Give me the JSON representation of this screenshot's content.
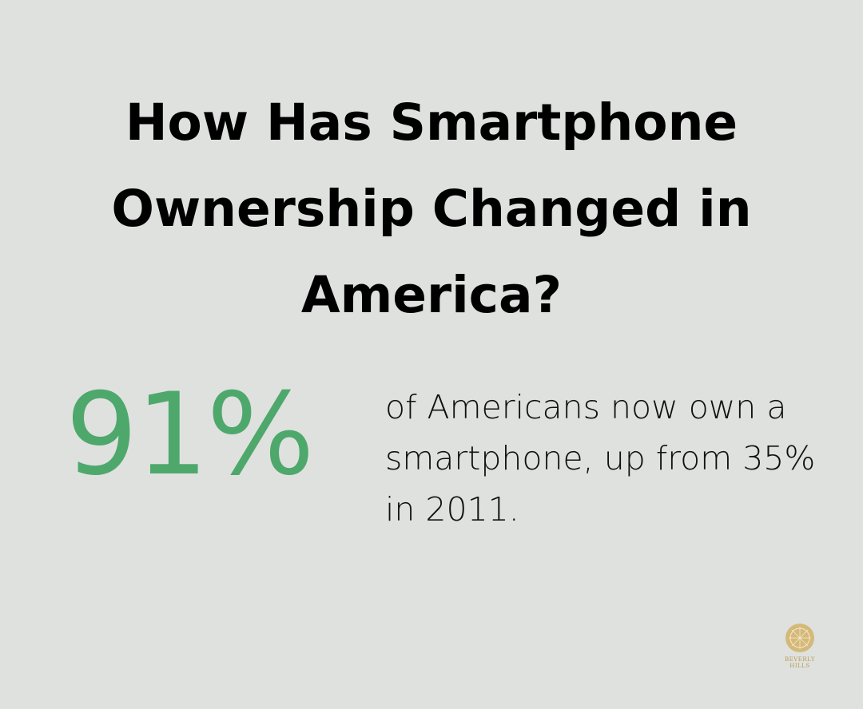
{
  "title": "How Has Smartphone Ownership Changed in America?",
  "stat": {
    "value": "91%",
    "color": "#4ea86c"
  },
  "description": "of Americans now own a smartphone, up from 35% in 2011.",
  "logo": {
    "text": "BEVERLY HILLS",
    "color": "#b99a55"
  }
}
